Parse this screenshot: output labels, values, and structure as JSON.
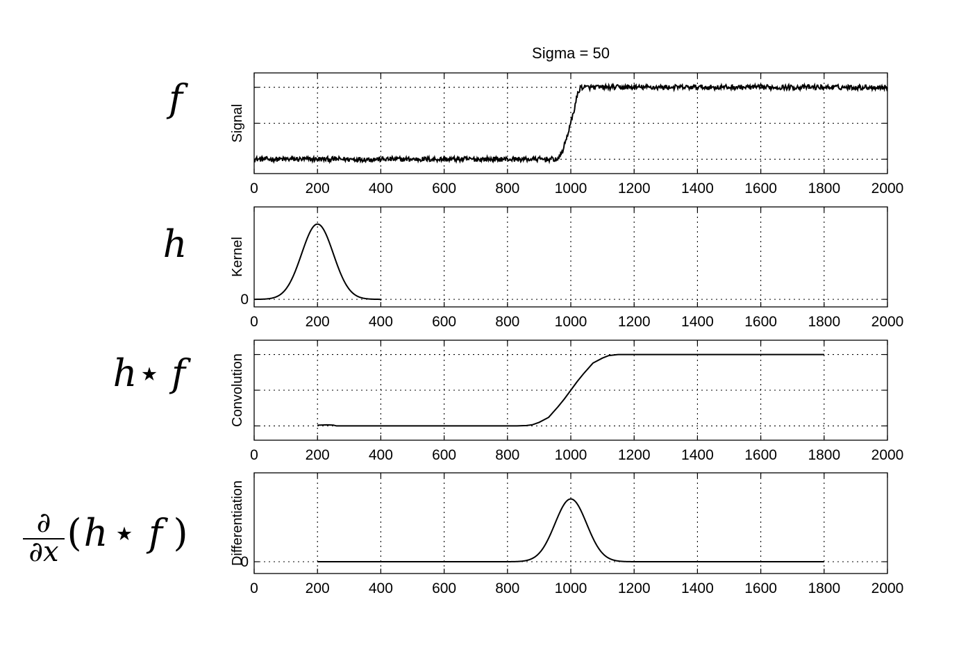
{
  "figure_title": "Sigma = 50",
  "row_labels": {
    "f": "f",
    "h": "h",
    "h_star": "h",
    "star": "⋆",
    "f2": "f",
    "d_num": "∂",
    "d_den": "∂x",
    "paren_open": "(",
    "paren_close": ")"
  },
  "chart_data": [
    {
      "type": "line",
      "name": "signal",
      "title": "Sigma = 50",
      "xlabel": "",
      "ylabel": "Signal",
      "xlim": [
        0,
        2000
      ],
      "ylim": [
        -0.2,
        1.2
      ],
      "xticks": [
        0,
        200,
        400,
        600,
        800,
        1000,
        1200,
        1400,
        1600,
        1800,
        2000
      ],
      "yticks": [
        0,
        0.5,
        1
      ],
      "ytick_labels": [
        "",
        "",
        ""
      ],
      "grid": true,
      "series": [
        {
          "name": "Signal",
          "x": [
            0,
            960,
            975,
            990,
            1000,
            1010,
            1020,
            1030,
            2000
          ],
          "y": [
            0,
            0,
            0.12,
            0.35,
            0.5,
            0.68,
            0.88,
            1,
            1
          ],
          "noise": 0.035
        }
      ]
    },
    {
      "type": "line",
      "name": "kernel",
      "xlabel": "",
      "ylabel": "Kernel",
      "xlim": [
        0,
        2000
      ],
      "ylim": [
        -0.0008,
        0.0098
      ],
      "xticks": [
        0,
        200,
        400,
        600,
        800,
        1000,
        1200,
        1400,
        1600,
        1800,
        2000
      ],
      "yticks": [
        0
      ],
      "ytick_labels": [
        "0"
      ],
      "grid": true,
      "series": [
        {
          "name": "Kernel",
          "gaussian": {
            "center": 200,
            "sigma": 50,
            "peak": 0.00798,
            "x_min": 0,
            "x_max": 400
          }
        }
      ]
    },
    {
      "type": "line",
      "name": "convolution",
      "xlabel": "",
      "ylabel": "Convolution",
      "xlim": [
        0,
        2000
      ],
      "ylim": [
        -0.2,
        1.2
      ],
      "xticks": [
        0,
        200,
        400,
        600,
        800,
        1000,
        1200,
        1400,
        1600,
        1800,
        2000
      ],
      "yticks": [
        0,
        0.5,
        1
      ],
      "ytick_labels": [
        "",
        "",
        ""
      ],
      "grid": true,
      "series": [
        {
          "name": "Convolution",
          "x": [
            200,
            230,
            250,
            260,
            830,
            860,
            880,
            900,
            930,
            960,
            980,
            1000,
            1020,
            1040,
            1070,
            1100,
            1120,
            1150,
            1800
          ],
          "y": [
            0.01,
            0.015,
            0.012,
            0,
            0,
            0.005,
            0.018,
            0.05,
            0.12,
            0.27,
            0.38,
            0.5,
            0.62,
            0.73,
            0.88,
            0.95,
            0.985,
            1,
            1
          ]
        }
      ]
    },
    {
      "type": "line",
      "name": "differentiation",
      "xlabel": "",
      "ylabel": "Differentiation",
      "xlim": [
        0,
        2000
      ],
      "ylim": [
        -0.0015,
        0.0113
      ],
      "xticks": [
        0,
        200,
        400,
        600,
        800,
        1000,
        1200,
        1400,
        1600,
        1800,
        2000
      ],
      "yticks": [
        0
      ],
      "ytick_labels": [
        "0"
      ],
      "grid": true,
      "series": [
        {
          "name": "Differentiation",
          "gaussian": {
            "center": 1000,
            "sigma": 50,
            "peak": 0.00798,
            "x_min": 200,
            "x_max": 1800
          }
        }
      ]
    }
  ]
}
